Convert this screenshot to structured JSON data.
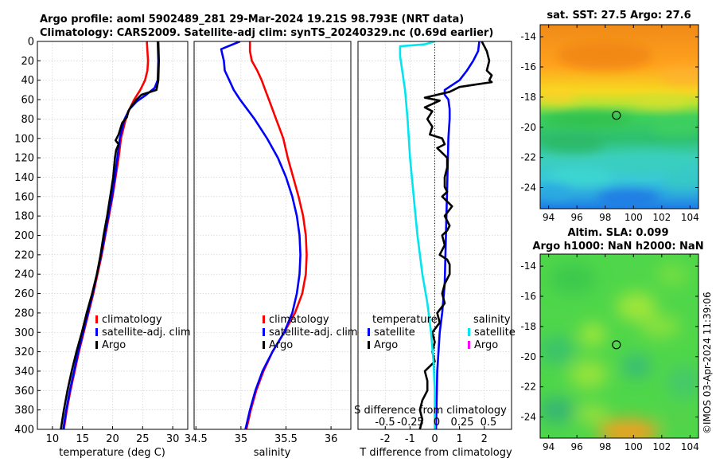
{
  "header": {
    "line1": "Argo profile: aoml 5902489_281 29-Mar-2024 19.21S 98.793E (NRT data)",
    "line2": "Climatology: CARS2009. Satellite-adj clim: synTS_20240329.nc (0.69d earlier)"
  },
  "footer": {
    "stamp": "©IMOS 03-Apr-2024 11:39:06"
  },
  "colors": {
    "climatology": "#ff0000",
    "satellite": "#0000ff",
    "argo": "#000000",
    "sat_salinity": "#00e5ee",
    "argo_salinity": "#ff00ff"
  },
  "chart_data": [
    {
      "id": "temperature",
      "type": "line",
      "xlabel": "temperature (deg C)",
      "xlim": [
        7.5,
        32.5
      ],
      "xticks": [
        10,
        15,
        20,
        25,
        30
      ],
      "ylim": [
        0,
        400
      ],
      "yticks": [
        0,
        20,
        40,
        60,
        80,
        100,
        120,
        140,
        160,
        180,
        200,
        220,
        240,
        260,
        280,
        300,
        320,
        340,
        360,
        380,
        400
      ],
      "legend": {
        "position": "lower-right",
        "entries": [
          "climatology",
          "satellite-adj. clim",
          "Argo"
        ]
      },
      "series": [
        {
          "name": "climatology",
          "color_key": "climatology",
          "points": [
            [
              25.7,
              0
            ],
            [
              25.8,
              10
            ],
            [
              25.9,
              20
            ],
            [
              25.8,
              30
            ],
            [
              25.4,
              40
            ],
            [
              24.6,
              50
            ],
            [
              23.6,
              60
            ],
            [
              22.8,
              70
            ],
            [
              22.2,
              80
            ],
            [
              21.8,
              90
            ],
            [
              21.4,
              100
            ],
            [
              21.0,
              120
            ],
            [
              20.5,
              140
            ],
            [
              20.0,
              160
            ],
            [
              19.4,
              180
            ],
            [
              18.8,
              200
            ],
            [
              18.2,
              220
            ],
            [
              17.5,
              240
            ],
            [
              16.8,
              260
            ],
            [
              16.0,
              280
            ],
            [
              15.2,
              300
            ],
            [
              14.4,
              320
            ],
            [
              13.7,
              340
            ],
            [
              13.0,
              360
            ],
            [
              12.4,
              380
            ],
            [
              11.9,
              400
            ]
          ]
        },
        {
          "name": "satellite-adj. clim",
          "color_key": "satellite",
          "points": [
            [
              27.5,
              0
            ],
            [
              27.6,
              20
            ],
            [
              27.5,
              40
            ],
            [
              27.0,
              48
            ],
            [
              25.6,
              55
            ],
            [
              24.0,
              62
            ],
            [
              22.8,
              70
            ],
            [
              22.0,
              80
            ],
            [
              21.6,
              90
            ],
            [
              21.2,
              100
            ],
            [
              20.8,
              120
            ],
            [
              20.4,
              140
            ],
            [
              19.9,
              160
            ],
            [
              19.3,
              180
            ],
            [
              18.7,
              200
            ],
            [
              18.1,
              220
            ],
            [
              17.4,
              240
            ],
            [
              16.7,
              260
            ],
            [
              15.9,
              280
            ],
            [
              15.1,
              300
            ],
            [
              14.3,
              320
            ],
            [
              13.6,
              340
            ],
            [
              12.9,
              360
            ],
            [
              12.3,
              380
            ],
            [
              11.8,
              400
            ]
          ]
        },
        {
          "name": "Argo",
          "color_key": "argo",
          "points": [
            [
              27.6,
              0
            ],
            [
              27.7,
              20
            ],
            [
              27.6,
              40
            ],
            [
              27.3,
              50
            ],
            [
              24.8,
              55
            ],
            [
              24.0,
              60
            ],
            [
              23.2,
              66
            ],
            [
              22.6,
              72
            ],
            [
              22.4,
              78
            ],
            [
              21.6,
              84
            ],
            [
              21.3,
              90
            ],
            [
              21.0,
              96
            ],
            [
              20.5,
              102
            ],
            [
              21.0,
              106
            ],
            [
              20.6,
              112
            ],
            [
              20.4,
              120
            ],
            [
              20.1,
              140
            ],
            [
              19.6,
              160
            ],
            [
              19.1,
              180
            ],
            [
              18.5,
              200
            ],
            [
              18.0,
              220
            ],
            [
              17.4,
              240
            ],
            [
              16.6,
              260
            ],
            [
              15.7,
              280
            ],
            [
              14.9,
              300
            ],
            [
              14.0,
              320
            ],
            [
              13.2,
              340
            ],
            [
              12.5,
              360
            ],
            [
              11.9,
              380
            ],
            [
              11.4,
              400
            ]
          ]
        }
      ]
    },
    {
      "id": "salinity",
      "type": "line",
      "xlabel": "salinity",
      "xlim": [
        34.48,
        36.22
      ],
      "xticks": [
        34.5,
        35,
        35.5,
        36
      ],
      "xtick_labels": [
        "34.5",
        "35",
        "35.5",
        "36"
      ],
      "ylim": [
        0,
        400
      ],
      "legend": {
        "position": "lower-right",
        "entries": [
          "climatology",
          "satellite-adj. clim",
          "Argo"
        ]
      },
      "series": [
        {
          "name": "climatology",
          "color_key": "climatology",
          "points": [
            [
              35.1,
              0
            ],
            [
              35.1,
              10
            ],
            [
              35.12,
              20
            ],
            [
              35.18,
              30
            ],
            [
              35.23,
              40
            ],
            [
              35.27,
              50
            ],
            [
              35.31,
              60
            ],
            [
              35.35,
              70
            ],
            [
              35.39,
              80
            ],
            [
              35.43,
              90
            ],
            [
              35.47,
              100
            ],
            [
              35.52,
              120
            ],
            [
              35.58,
              140
            ],
            [
              35.64,
              160
            ],
            [
              35.69,
              180
            ],
            [
              35.72,
              200
            ],
            [
              35.73,
              220
            ],
            [
              35.72,
              240
            ],
            [
              35.68,
              260
            ],
            [
              35.6,
              280
            ],
            [
              35.48,
              300
            ],
            [
              35.35,
              320
            ],
            [
              35.25,
              340
            ],
            [
              35.17,
              360
            ],
            [
              35.11,
              380
            ],
            [
              35.06,
              400
            ]
          ]
        },
        {
          "name": "satellite-adj. clim",
          "color_key": "satellite",
          "points": [
            [
              34.99,
              0
            ],
            [
              34.78,
              8
            ],
            [
              34.79,
              12
            ],
            [
              34.81,
              20
            ],
            [
              34.82,
              30
            ],
            [
              34.87,
              40
            ],
            [
              34.92,
              50
            ],
            [
              34.99,
              60
            ],
            [
              35.07,
              70
            ],
            [
              35.15,
              80
            ],
            [
              35.22,
              90
            ],
            [
              35.29,
              100
            ],
            [
              35.41,
              120
            ],
            [
              35.5,
              140
            ],
            [
              35.57,
              160
            ],
            [
              35.62,
              180
            ],
            [
              35.65,
              200
            ],
            [
              35.66,
              220
            ],
            [
              35.65,
              240
            ],
            [
              35.62,
              260
            ],
            [
              35.57,
              280
            ],
            [
              35.48,
              300
            ],
            [
              35.35,
              320
            ],
            [
              35.24,
              340
            ],
            [
              35.16,
              360
            ],
            [
              35.1,
              380
            ],
            [
              35.05,
              400
            ]
          ]
        }
      ]
    },
    {
      "id": "difference",
      "type": "line",
      "xlabel": "T difference from climatology",
      "xlim": [
        -3.1,
        3.1
      ],
      "xticks": [
        -2,
        -1,
        0,
        1,
        2
      ],
      "top_axis_label": "S difference from climatology",
      "top_ticks": [
        "-0.5",
        "-0.25",
        "0",
        "0.25",
        "0.5"
      ],
      "ylim": [
        0,
        400
      ],
      "legend_temperature": {
        "title": "temperature",
        "entries": [
          "satellite",
          "Argo"
        ]
      },
      "legend_salinity": {
        "title": "salinity",
        "entries": [
          "satellite",
          "Argo"
        ]
      },
      "series": [
        {
          "name": "temperature satellite",
          "color_key": "satellite",
          "points": [
            [
              1.8,
              0
            ],
            [
              1.75,
              10
            ],
            [
              1.55,
              20
            ],
            [
              1.3,
              30
            ],
            [
              1.0,
              40
            ],
            [
              0.4,
              50
            ],
            [
              0.4,
              55
            ],
            [
              0.55,
              60
            ],
            [
              0.6,
              70
            ],
            [
              0.6,
              80
            ],
            [
              0.55,
              100
            ],
            [
              0.5,
              150
            ],
            [
              0.45,
              200
            ],
            [
              0.4,
              250
            ],
            [
              0.3,
              280
            ],
            [
              0.2,
              300
            ],
            [
              0.1,
              340
            ],
            [
              0.05,
              400
            ]
          ]
        },
        {
          "name": "temperature Argo",
          "color_key": "argo",
          "points": [
            [
              1.9,
              0
            ],
            [
              2.1,
              10
            ],
            [
              2.2,
              20
            ],
            [
              2.1,
              30
            ],
            [
              2.3,
              35
            ],
            [
              2.2,
              40
            ],
            [
              2.3,
              42
            ],
            [
              1.5,
              45
            ],
            [
              1.0,
              47
            ],
            [
              0.6,
              52
            ],
            [
              -0.4,
              58
            ],
            [
              0.2,
              61
            ],
            [
              -0.4,
              68
            ],
            [
              -0.1,
              72
            ],
            [
              -0.3,
              80
            ],
            [
              -0.1,
              88
            ],
            [
              -0.2,
              96
            ],
            [
              0.3,
              100
            ],
            [
              0.4,
              106
            ],
            [
              0.1,
              110
            ],
            [
              0.5,
              120
            ],
            [
              0.5,
              130
            ],
            [
              0.4,
              140
            ],
            [
              0.4,
              150
            ],
            [
              0.5,
              155
            ],
            [
              0.3,
              160
            ],
            [
              0.7,
              170
            ],
            [
              0.4,
              180
            ],
            [
              0.6,
              190
            ],
            [
              0.5,
              195
            ],
            [
              0.3,
              200
            ],
            [
              0.4,
              210
            ],
            [
              0.2,
              220
            ],
            [
              0.5,
              225
            ],
            [
              0.6,
              230
            ],
            [
              0.6,
              240
            ],
            [
              0.4,
              250
            ],
            [
              0.3,
              260
            ],
            [
              0.4,
              270
            ],
            [
              0.1,
              280
            ],
            [
              0.2,
              290
            ],
            [
              -0.1,
              300
            ],
            [
              0.0,
              310
            ],
            [
              -0.1,
              320
            ],
            [
              0.0,
              330
            ],
            [
              -0.4,
              340
            ],
            [
              -0.3,
              350
            ],
            [
              -0.3,
              360
            ],
            [
              -0.5,
              370
            ],
            [
              -0.6,
              380
            ],
            [
              -0.5,
              390
            ],
            [
              -0.6,
              400
            ]
          ]
        },
        {
          "name": "salinity satellite",
          "color_key": "sat_salinity",
          "points": [
            [
              0.0,
              0
            ],
            [
              -0.42,
              3
            ],
            [
              -1.4,
              5
            ],
            [
              -1.4,
              15
            ],
            [
              -1.2,
              50
            ],
            [
              -1.1,
              80
            ],
            [
              -1.0,
              120
            ],
            [
              -0.85,
              160
            ],
            [
              -0.7,
              200
            ],
            [
              -0.5,
              240
            ],
            [
              -0.3,
              270
            ],
            [
              -0.15,
              300
            ],
            [
              -0.05,
              330
            ],
            [
              0.0,
              360
            ],
            [
              0.0,
              400
            ]
          ]
        }
      ]
    }
  ],
  "maps": [
    {
      "id": "sst",
      "title": "sat. SST: 27.5 Argo: 27.6",
      "xticks": [
        "94",
        "96",
        "98",
        "100",
        "102",
        "104"
      ],
      "yticks": [
        "-14",
        "-16",
        "-18",
        "-20",
        "-22",
        "-24"
      ],
      "lon_range": [
        93.4,
        104.6
      ],
      "lat_range": [
        -25.4,
        -13.2
      ],
      "marker": {
        "lon": 98.793,
        "lat": -19.21
      }
    },
    {
      "id": "sla",
      "title1": "Altim. SLA: 0.099",
      "title2": "Argo h1000: NaN h2000: NaN",
      "xticks": [
        "94",
        "96",
        "98",
        "100",
        "102",
        "104"
      ],
      "yticks": [
        "-14",
        "-16",
        "-18",
        "-20",
        "-22",
        "-24"
      ],
      "lon_range": [
        93.4,
        104.6
      ],
      "lat_range": [
        -25.4,
        -13.2
      ],
      "marker": {
        "lon": 98.793,
        "lat": -19.21
      }
    }
  ]
}
